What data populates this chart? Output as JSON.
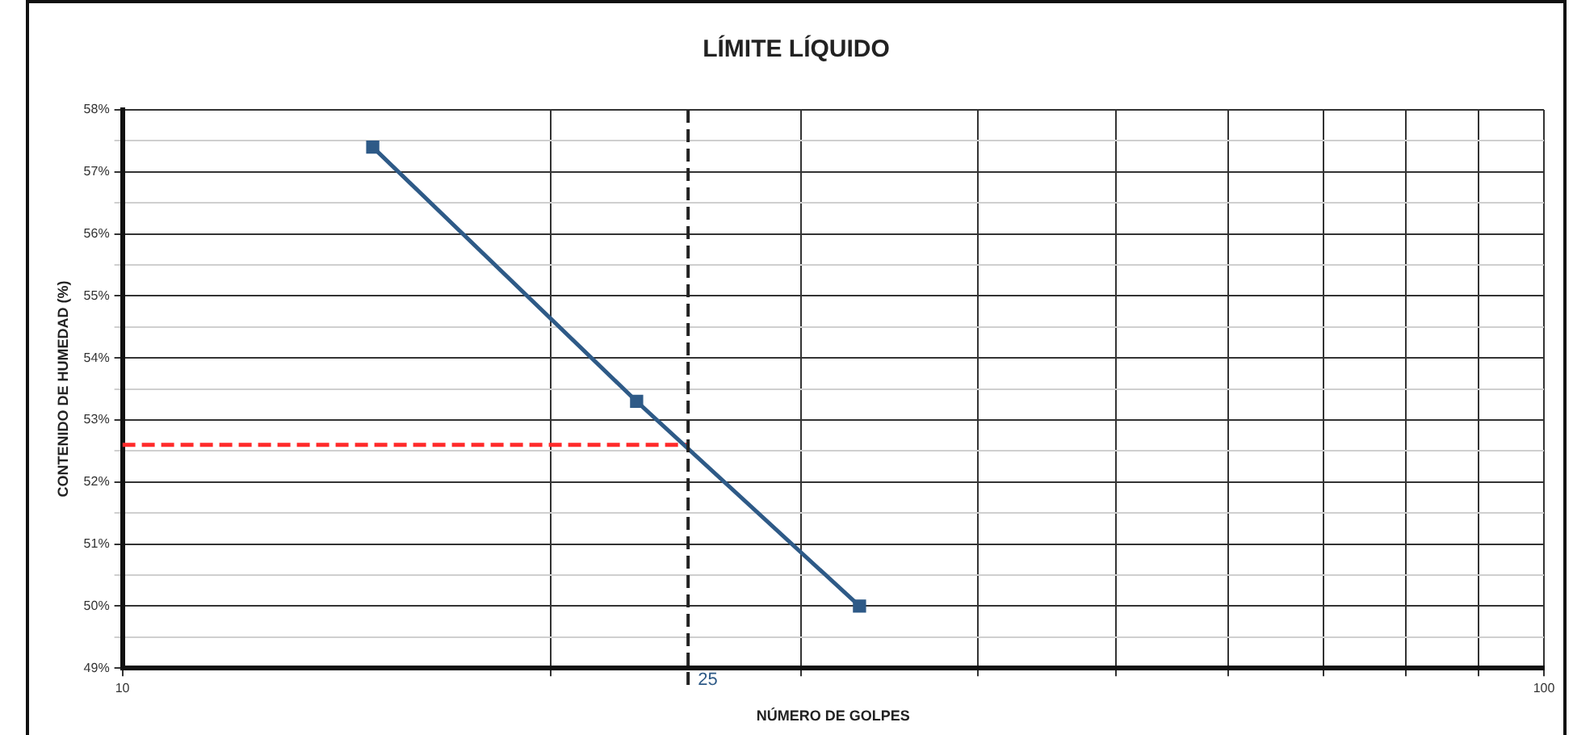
{
  "chart_data": {
    "type": "line",
    "title": "LÍMITE LÍQUIDO",
    "xlabel": "NÚMERO DE GOLPES",
    "ylabel": "CONTENIDO DE HUMEDAD (%)",
    "log": "x",
    "grid": true,
    "legend": false,
    "xlim": [
      10,
      100
    ],
    "xticks": [
      10,
      {
        "value": 20,
        "label": null
      },
      {
        "value": 30,
        "label": null
      },
      {
        "value": 40,
        "label": null
      },
      {
        "value": 50,
        "label": null
      },
      {
        "value": 60,
        "label": null
      },
      {
        "value": 70,
        "label": null
      },
      {
        "value": 80,
        "label": null
      },
      {
        "value": 90,
        "label": null
      },
      100
    ],
    "ylim": [
      49,
      58
    ],
    "yticks": [
      {
        "value": 49,
        "label": "49%"
      },
      {
        "value": 49.5,
        "label": null
      },
      {
        "value": 50,
        "label": "50%"
      },
      {
        "value": 50.5,
        "label": null
      },
      {
        "value": 51,
        "label": "51%"
      },
      {
        "value": 51.5,
        "label": null
      },
      {
        "value": 52,
        "label": "52%"
      },
      {
        "value": 52.5,
        "label": null
      },
      {
        "value": 53,
        "label": "53%"
      },
      {
        "value": 53.5,
        "label": null
      },
      {
        "value": 54,
        "label": "54%"
      },
      {
        "value": 54.5,
        "label": null
      },
      {
        "value": 55,
        "label": "55%"
      },
      {
        "value": 55.5,
        "label": null
      },
      {
        "value": 56,
        "label": "56%"
      },
      {
        "value": 56.5,
        "label": null
      },
      {
        "value": 57,
        "label": "57%"
      },
      {
        "value": 57.5,
        "label": null
      },
      {
        "value": 58,
        "label": "58%"
      }
    ],
    "series": [
      {
        "type": "line",
        "color": "#2e5a87",
        "marker": "square",
        "line_style": "solid",
        "x": [
          15,
          23,
          33
        ],
        "values": [
          57.4,
          53.3,
          50.0
        ]
      },
      {
        "type": "line",
        "color": "#ff2a2a",
        "marker": "none",
        "line_style": "dashed",
        "x": [
          10,
          25
        ],
        "values": [
          52.6,
          52.6
        ]
      }
    ],
    "ref_lines": [
      {
        "axis": "x",
        "value": 25,
        "label": "25",
        "color": "#222222",
        "line_style": "dashed"
      }
    ]
  }
}
